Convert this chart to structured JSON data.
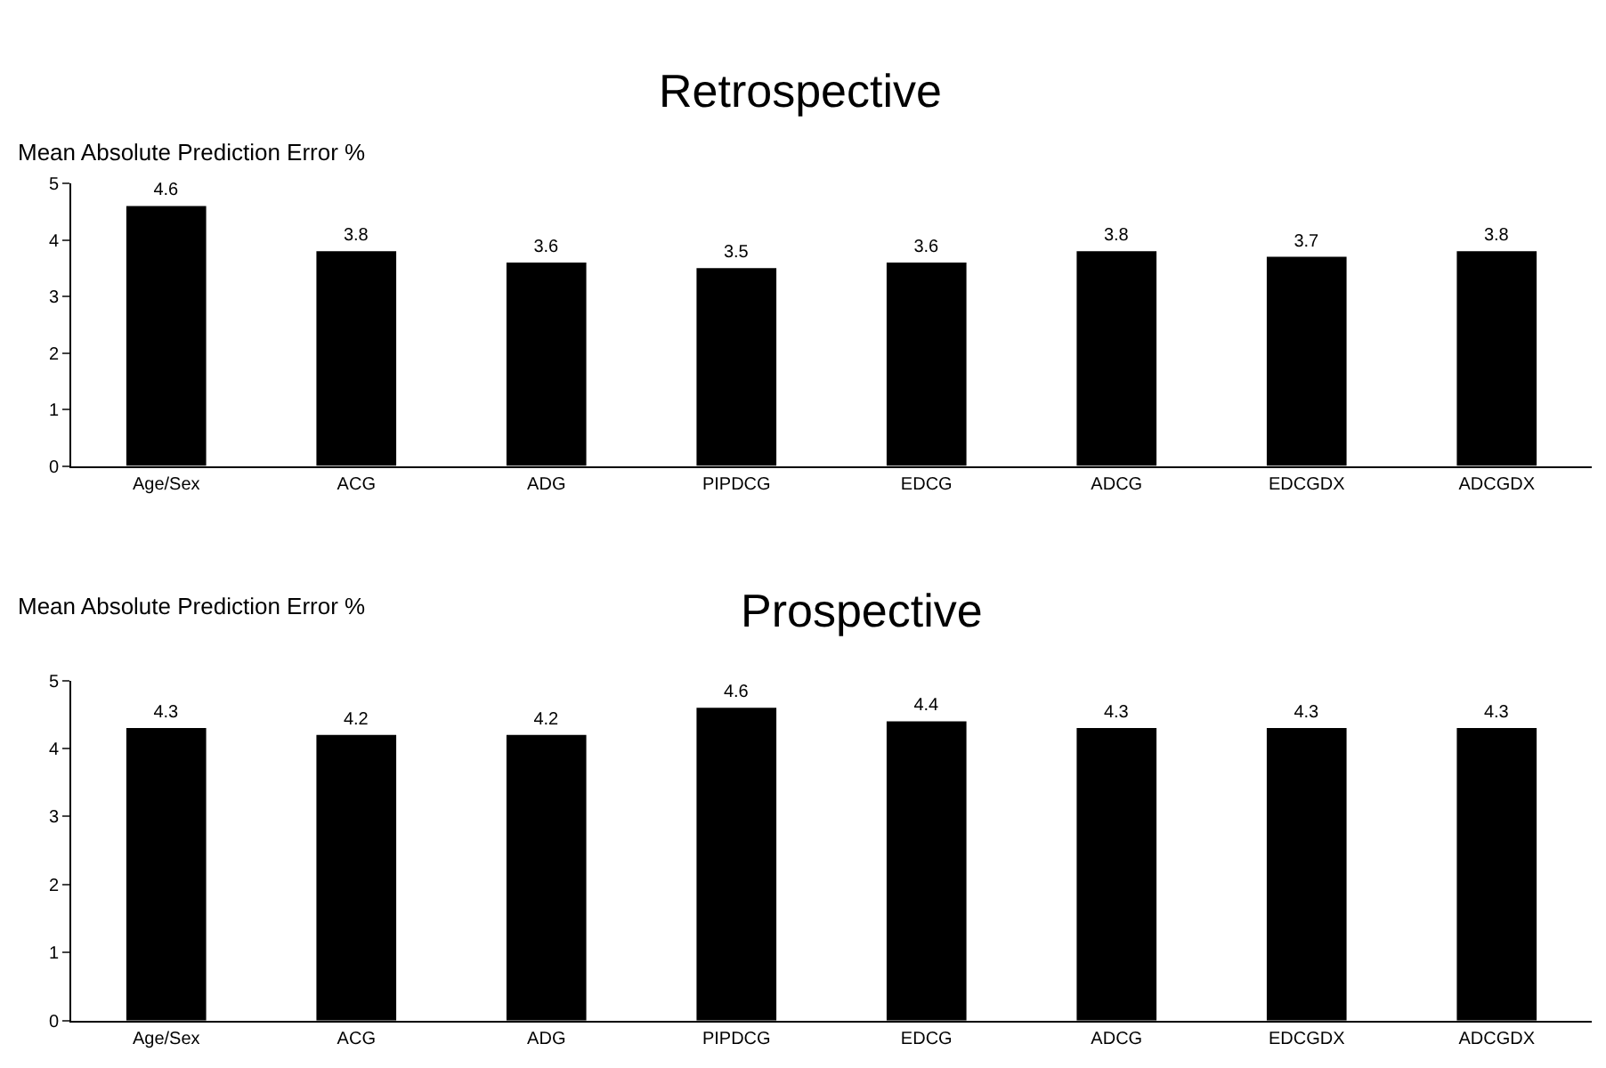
{
  "chart_data": [
    {
      "type": "bar",
      "title": "Retrospective",
      "ylabel": "Mean Absolute Prediction Error %",
      "categories": [
        "Age/Sex",
        "ACG",
        "ADG",
        "PIPDCG",
        "EDCG",
        "ADCG",
        "EDCGDX",
        "ADCGDX"
      ],
      "values": [
        4.6,
        3.8,
        3.6,
        3.5,
        3.6,
        3.8,
        3.7,
        3.8
      ],
      "color": "#000000",
      "ylim": [
        0,
        5
      ],
      "yticks": [
        0,
        1,
        2,
        3,
        4,
        5
      ],
      "data_labels": true
    },
    {
      "type": "bar",
      "title": "Prospective",
      "ylabel": "Mean Absolute Prediction Error %",
      "categories": [
        "Age/Sex",
        "ACG",
        "ADG",
        "PIPDCG",
        "EDCG",
        "ADCG",
        "EDCGDX",
        "ADCGDX"
      ],
      "values": [
        4.3,
        4.2,
        4.2,
        4.6,
        4.4,
        4.3,
        4.3,
        4.3
      ],
      "color": "#000000",
      "ylim": [
        0,
        5
      ],
      "yticks": [
        0,
        1,
        2,
        3,
        4,
        5
      ],
      "data_labels": true
    }
  ]
}
